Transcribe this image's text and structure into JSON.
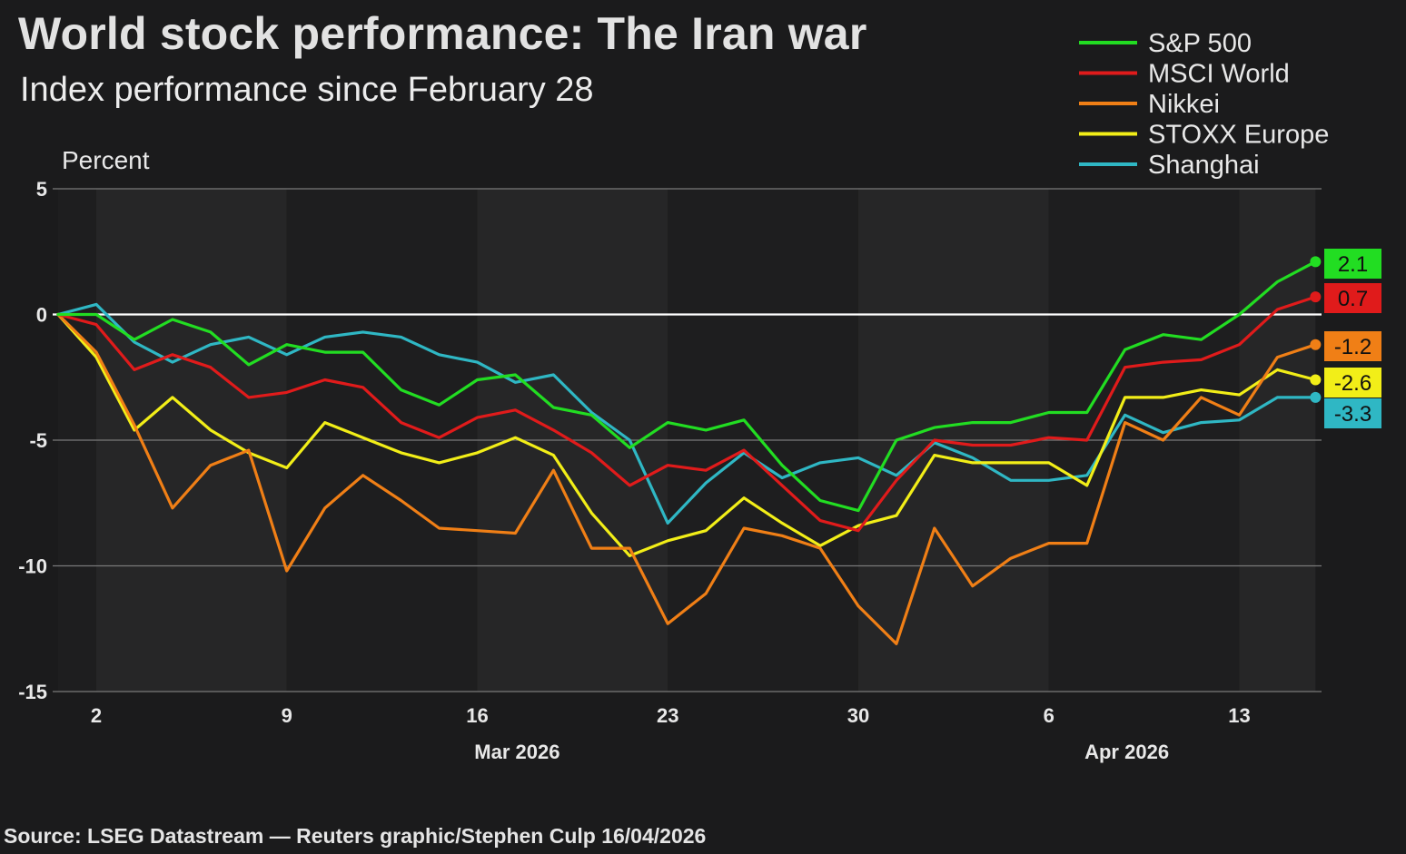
{
  "title": "World stock performance: The Iran war",
  "subtitle": "Index performance since February 28",
  "source": "Source: LSEG Datastream — Reuters graphic/Stephen Culp 16/04/2026",
  "chart_data": {
    "type": "line",
    "ylabel": "Percent",
    "ylim": [
      -15,
      5
    ],
    "yticks": [
      5,
      0,
      -5,
      -10,
      -15
    ],
    "xlim": [
      0,
      33
    ],
    "x_ticks": [
      {
        "x": 1,
        "label": "2"
      },
      {
        "x": 6,
        "label": "9"
      },
      {
        "x": 11,
        "label": "16"
      },
      {
        "x": 16,
        "label": "23"
      },
      {
        "x": 21,
        "label": "30"
      },
      {
        "x": 26,
        "label": "6"
      },
      {
        "x": 31,
        "label": "13"
      }
    ],
    "month_labels": [
      {
        "x": 12,
        "label": "Mar 2026"
      },
      {
        "x": 28,
        "label": "Apr 2026"
      }
    ],
    "x": [
      0,
      1,
      2,
      3,
      4,
      5,
      6,
      7,
      8,
      9,
      10,
      11,
      12,
      13,
      14,
      15,
      16,
      17,
      18,
      19,
      20,
      21,
      22,
      23,
      24,
      25,
      26,
      27,
      28,
      29,
      30,
      31,
      32,
      33
    ],
    "series": [
      {
        "name": "S&P 500",
        "color": "#22dd22",
        "end_label": "2.1",
        "end_label_text_color": "#111111",
        "values": [
          0,
          0,
          -1,
          -0.2,
          -0.7,
          -2.0,
          -1.2,
          -1.5,
          -1.5,
          -3.0,
          -3.6,
          -2.6,
          -2.4,
          -3.7,
          -4.0,
          -5.3,
          -4.3,
          -4.6,
          -4.2,
          -6.0,
          -7.4,
          -7.8,
          -5.0,
          -4.5,
          -4.3,
          -4.3,
          -3.9,
          -3.9,
          -1.4,
          -0.8,
          -1.0,
          0.0,
          1.3,
          2.1
        ]
      },
      {
        "name": "MSCI World",
        "color": "#e01b1b",
        "end_label": "0.7",
        "end_label_text_color": "#111111",
        "values": [
          0,
          -0.4,
          -2.2,
          -1.6,
          -2.1,
          -3.3,
          -3.1,
          -2.6,
          -2.9,
          -4.3,
          -4.9,
          -4.1,
          -3.8,
          -4.6,
          -5.5,
          -6.8,
          -6.0,
          -6.2,
          -5.4,
          -6.8,
          -8.2,
          -8.6,
          -6.6,
          -5.0,
          -5.2,
          -5.2,
          -4.9,
          -5.0,
          -2.1,
          -1.9,
          -1.8,
          -1.2,
          0.2,
          0.7
        ]
      },
      {
        "name": "Nikkei",
        "color": "#f07f16",
        "end_label": "-1.2",
        "end_label_text_color": "#111111",
        "values": [
          0,
          -1.5,
          -4.4,
          -7.7,
          -6.0,
          -5.4,
          -10.2,
          -7.7,
          -6.4,
          -7.4,
          -8.5,
          -8.6,
          -8.7,
          -6.2,
          -9.3,
          -9.3,
          -12.3,
          -11.1,
          -8.5,
          -8.8,
          -9.3,
          -11.6,
          -13.1,
          -8.5,
          -10.8,
          -9.7,
          -9.1,
          -9.1,
          -4.3,
          -5.0,
          -3.3,
          -4.0,
          -1.7,
          -1.2
        ]
      },
      {
        "name": "STOXX Europe",
        "color": "#f2ee18",
        "end_label": "-2.6",
        "end_label_text_color": "#111111",
        "values": [
          0,
          -1.7,
          -4.6,
          -3.3,
          -4.6,
          -5.5,
          -6.1,
          -4.3,
          -4.9,
          -5.5,
          -5.9,
          -5.5,
          -4.9,
          -5.6,
          -7.9,
          -9.6,
          -9.0,
          -8.6,
          -7.3,
          -8.3,
          -9.2,
          -8.4,
          -8.0,
          -5.6,
          -5.9,
          -5.9,
          -5.9,
          -6.8,
          -3.3,
          -3.3,
          -3.0,
          -3.2,
          -2.2,
          -2.6
        ]
      },
      {
        "name": "Shanghai",
        "color": "#2fb7c4",
        "end_label": "-3.3",
        "end_label_text_color": "#111111",
        "values": [
          0,
          0.4,
          -1.1,
          -1.9,
          -1.2,
          -0.9,
          -1.6,
          -0.9,
          -0.7,
          -0.9,
          -1.6,
          -1.9,
          -2.7,
          -2.4,
          -3.9,
          -5.0,
          -8.3,
          -6.7,
          -5.5,
          -6.5,
          -5.9,
          -5.7,
          -6.4,
          -5.1,
          -5.7,
          -6.6,
          -6.6,
          -6.4,
          -4.0,
          -4.7,
          -4.3,
          -4.2,
          -3.3,
          -3.3
        ]
      }
    ]
  }
}
